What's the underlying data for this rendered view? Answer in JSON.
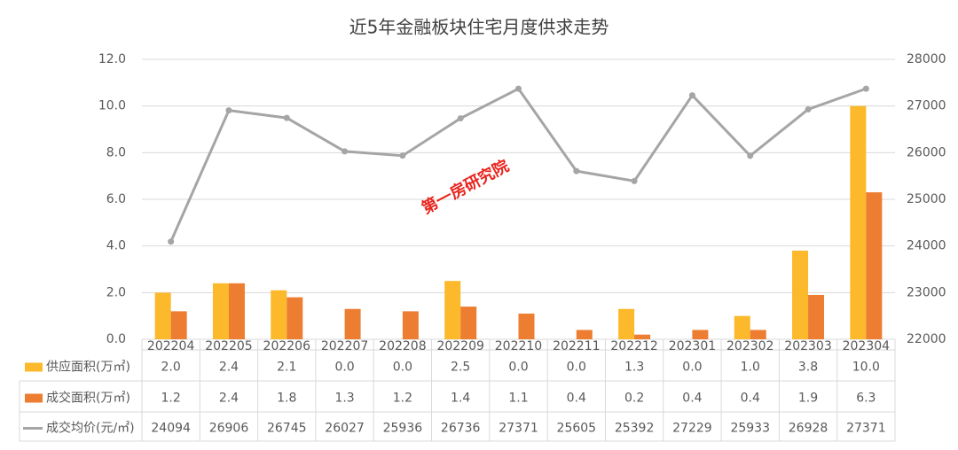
{
  "chart_data": {
    "type": "bar-line-table",
    "title": "近5年金融板块住宅月度供求走势",
    "annotation": "第一房研究院",
    "categories": [
      "202204",
      "202205",
      "202206",
      "202207",
      "202208",
      "202209",
      "202210",
      "202211",
      "202212",
      "202301",
      "202302",
      "202303",
      "202304"
    ],
    "series": [
      {
        "name": "供应面积(万㎡)",
        "type": "bar",
        "color": "#fbb92b",
        "values": [
          2.0,
          2.4,
          2.1,
          0,
          0,
          2.5,
          0,
          0,
          1.3,
          0,
          1.0,
          3.8,
          10.0
        ],
        "value_labels": [
          "2.0",
          "2.4",
          "2.1",
          "0.0",
          "0.0",
          "2.5",
          "0.0",
          "0.0",
          "1.3",
          "0.0",
          "1.0",
          "3.8",
          "10.0"
        ]
      },
      {
        "name": "成交面积(万㎡)",
        "type": "bar",
        "color": "#ed7d31",
        "values": [
          1.2,
          2.4,
          1.8,
          1.3,
          1.2,
          1.4,
          1.1,
          0.4,
          0.2,
          0.4,
          0.4,
          1.9,
          6.3
        ]
      },
      {
        "name": "成交均价(元/㎡)",
        "type": "line",
        "axis": "y2",
        "color": "#a5a5a5",
        "values": [
          24094,
          26906,
          26745,
          26027,
          25936,
          26736,
          27371,
          25605,
          25392,
          27229,
          25933,
          26928,
          27371
        ]
      }
    ],
    "ylim": [
      0,
      12
    ],
    "yticks": [
      {
        "value": 0,
        "label": "0.0"
      },
      {
        "value": 2,
        "label": "2.0"
      },
      {
        "value": 4,
        "label": "4.0"
      },
      {
        "value": 6,
        "label": "6.0"
      },
      {
        "value": 8,
        "label": "8.0"
      },
      {
        "value": 10,
        "label": "10.0"
      },
      {
        "value": 12,
        "label": "12.0"
      }
    ],
    "y2lim": [
      22000,
      28000
    ],
    "y2ticks": [
      22000,
      23000,
      24000,
      25000,
      26000,
      27000,
      28000
    ],
    "grid": true
  }
}
